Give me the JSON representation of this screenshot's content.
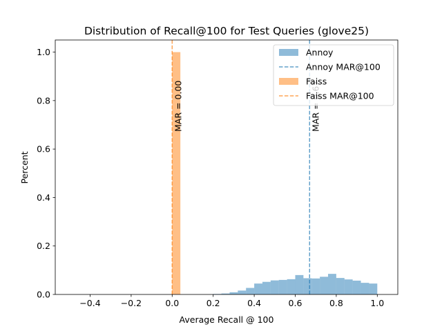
{
  "chart_data": {
    "type": "bar",
    "title": "Distribution of Recall@100 for Test Queries (glove25)",
    "xlabel": "Average Recall @ 100",
    "ylabel": "Percent",
    "xlim": [
      -0.57,
      1.1
    ],
    "ylim": [
      0,
      1.05
    ],
    "xticks": [
      -0.4,
      -0.2,
      0.0,
      0.2,
      0.4,
      0.6,
      0.8,
      1.0
    ],
    "xtick_labels": [
      "−0.4",
      "−0.2",
      "0.0",
      "0.2",
      "0.4",
      "0.6",
      "0.8",
      "1.0"
    ],
    "yticks": [
      0.0,
      0.2,
      0.4,
      0.6,
      0.8,
      1.0
    ],
    "ytick_labels": [
      "0.0",
      "0.2",
      "0.4",
      "0.6",
      "0.8",
      "1.0"
    ],
    "grid": false,
    "legend_position": "top-right",
    "bin_width": 0.04,
    "series": [
      {
        "name": "Annoy",
        "color": "#1f77b4",
        "opacity": 0.5,
        "bin_starts": [
          0.2,
          0.24,
          0.28,
          0.32,
          0.36,
          0.4,
          0.44,
          0.48,
          0.52,
          0.56,
          0.6,
          0.64,
          0.68,
          0.72,
          0.76,
          0.8,
          0.84,
          0.88,
          0.92,
          0.96
        ],
        "values": [
          0.002,
          0.004,
          0.009,
          0.016,
          0.027,
          0.045,
          0.052,
          0.058,
          0.06,
          0.063,
          0.08,
          0.067,
          0.066,
          0.073,
          0.085,
          0.068,
          0.062,
          0.057,
          0.048,
          0.045
        ]
      },
      {
        "name": "Faiss",
        "color": "#ff7f0e",
        "opacity": 0.5,
        "bin_starts": [
          0.0
        ],
        "values": [
          1.0
        ]
      }
    ],
    "mean_lines": [
      {
        "name": "Annoy MAR@100",
        "color": "#1f77b4",
        "x": 0.67,
        "label": "MAR = 0.67"
      },
      {
        "name": "Faiss MAR@100",
        "color": "#ff7f0e",
        "x": 0.0,
        "label": "MAR = 0.00"
      }
    ]
  }
}
